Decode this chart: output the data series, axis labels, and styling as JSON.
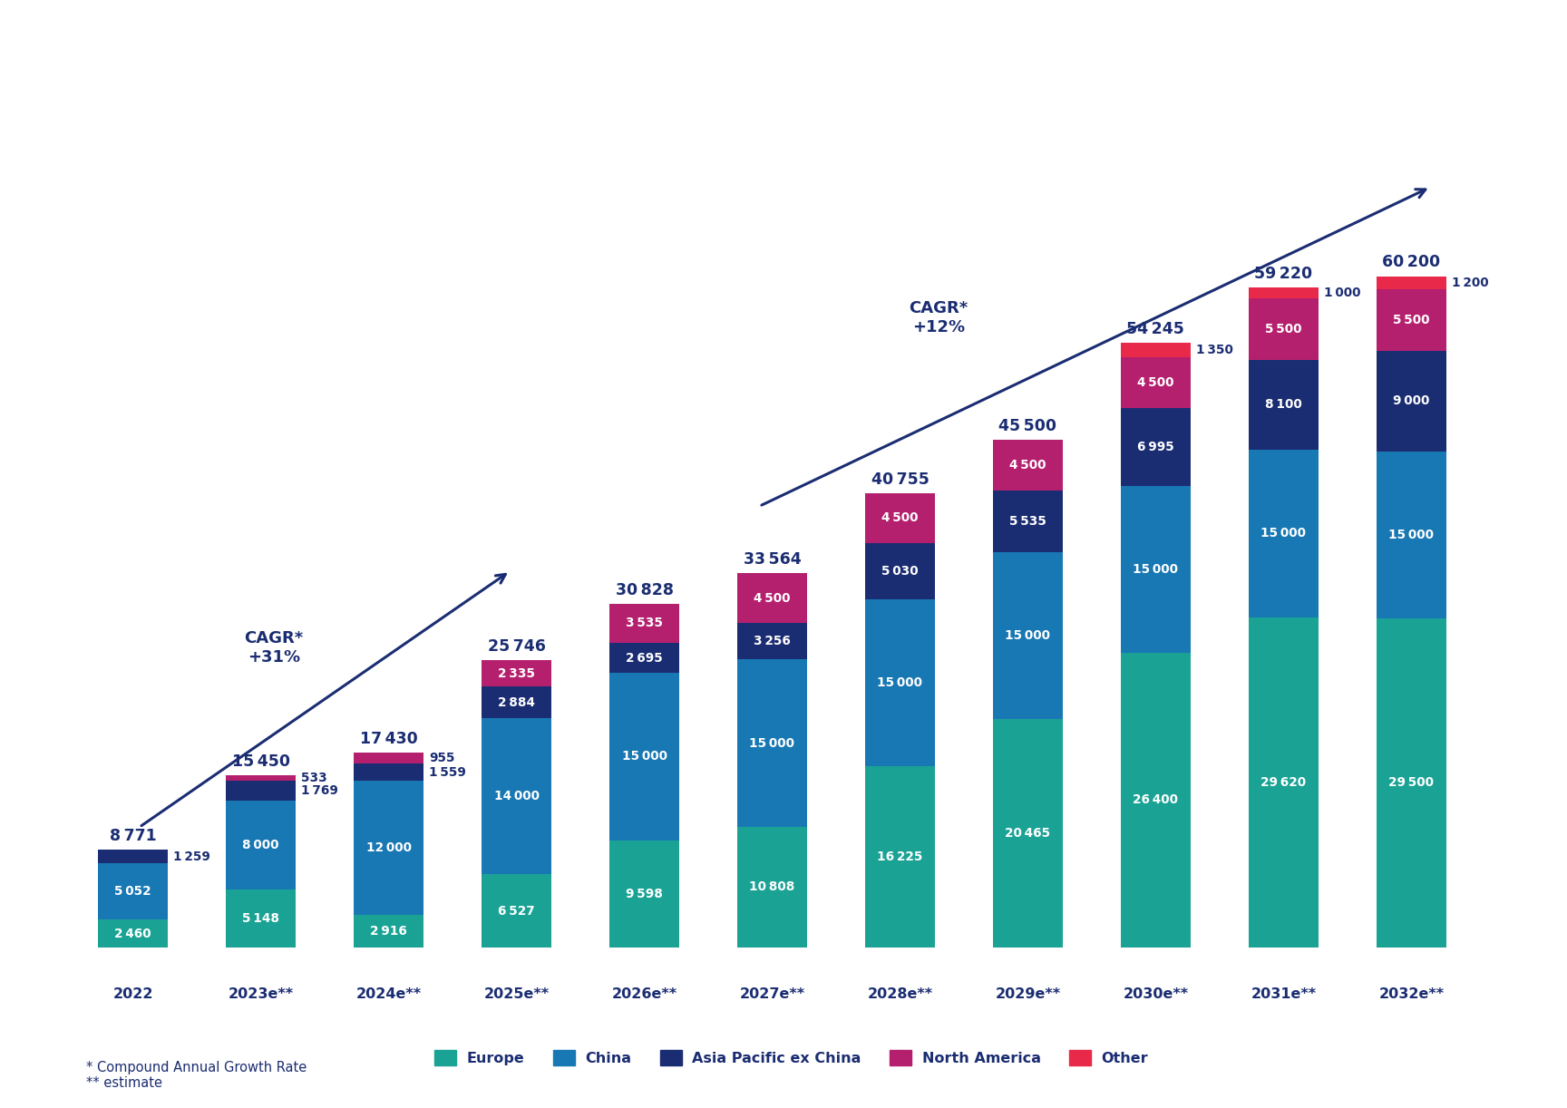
{
  "years": [
    "2022",
    "2023e**",
    "2024e**",
    "2025e**",
    "2026e**",
    "2027e**",
    "2028e**",
    "2029e**",
    "2030e**",
    "2031e**",
    "2032e**"
  ],
  "totals": [
    8771,
    15450,
    17430,
    25746,
    30828,
    33564,
    40755,
    45500,
    54245,
    59220,
    60200
  ],
  "europe": [
    2460,
    5148,
    2916,
    6527,
    9598,
    10808,
    16225,
    20465,
    26400,
    29620,
    29500
  ],
  "china": [
    5052,
    8000,
    12000,
    14000,
    15000,
    15000,
    15000,
    15000,
    15000,
    15000,
    15000
  ],
  "asia_pac": [
    1259,
    1769,
    1559,
    2884,
    2695,
    3256,
    5030,
    5535,
    6995,
    8100,
    9000
  ],
  "north_am": [
    0,
    533,
    955,
    2335,
    3535,
    4500,
    4500,
    4500,
    4500,
    5500,
    5500
  ],
  "other": [
    0,
    0,
    0,
    0,
    0,
    0,
    0,
    0,
    1350,
    1000,
    1200
  ],
  "col_europe": "#1aa395",
  "col_china": "#1878b4",
  "col_asia_pac": "#1b2d72",
  "col_north_am": "#b5206e",
  "col_other": "#e8294a",
  "legend_labels": [
    "Europe",
    "China",
    "Asia Pacific ex China",
    "North America",
    "Other"
  ],
  "footnote1": "* Compound Annual Growth Rate",
  "footnote2": "** estimate",
  "tc": "#1b2d72"
}
